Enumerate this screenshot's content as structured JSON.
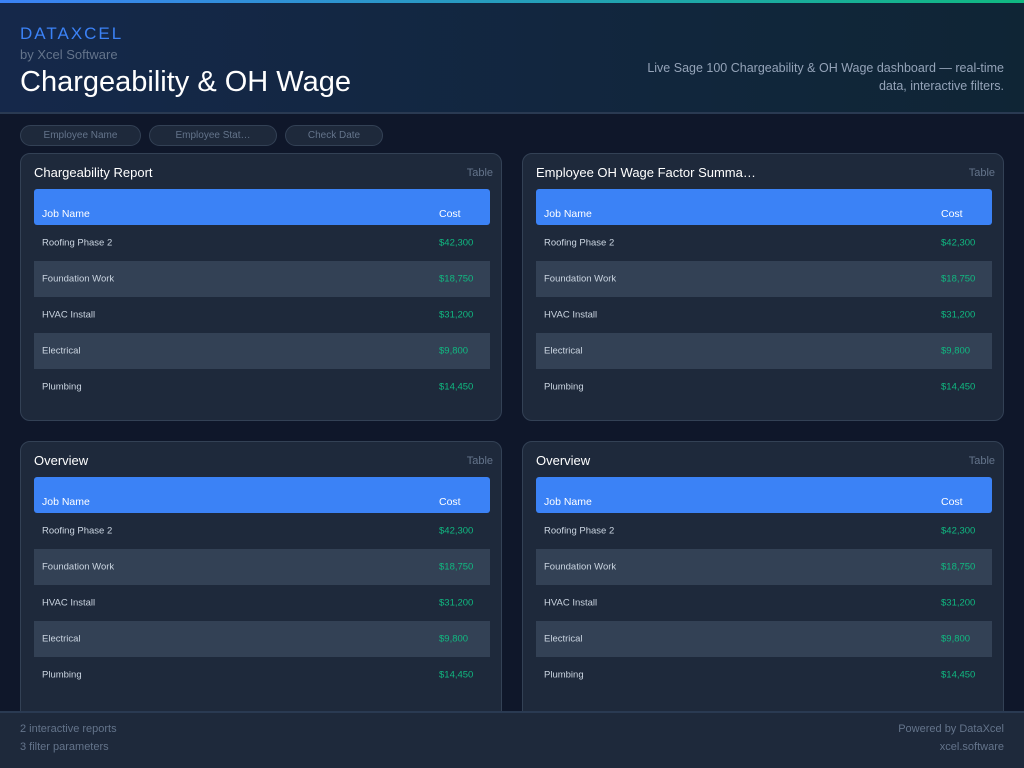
{
  "header": {
    "brand": "DATAXCEL",
    "byline": "by Xcel Software",
    "title": "Chargeability & OH Wage",
    "description": "Live Sage 100 Chargeability & OH Wage dashboard — real-time data, interactive filters."
  },
  "filters": [
    {
      "label": "Employee Name"
    },
    {
      "label": "Employee Stat…"
    },
    {
      "label": "Check Date"
    }
  ],
  "cards": [
    {
      "title": "Chargeability Report",
      "type": "Table",
      "columns": [
        "Job Name",
        "Cost"
      ],
      "rows": [
        [
          "Roofing Phase 2",
          "$42,300"
        ],
        [
          "Foundation Work",
          "$18,750"
        ],
        [
          "HVAC Install",
          "$31,200"
        ],
        [
          "Electrical",
          "$9,800"
        ],
        [
          "Plumbing",
          "$14,450"
        ]
      ]
    },
    {
      "title": "Employee OH Wage Factor Summa…",
      "type": "Table",
      "columns": [
        "Job Name",
        "Cost"
      ],
      "rows": [
        [
          "Roofing Phase 2",
          "$42,300"
        ],
        [
          "Foundation Work",
          "$18,750"
        ],
        [
          "HVAC Install",
          "$31,200"
        ],
        [
          "Electrical",
          "$9,800"
        ],
        [
          "Plumbing",
          "$14,450"
        ]
      ]
    },
    {
      "title": "Overview",
      "type": "Table",
      "columns": [
        "Job Name",
        "Cost"
      ],
      "rows": [
        [
          "Roofing Phase 2",
          "$42,300"
        ],
        [
          "Foundation Work",
          "$18,750"
        ],
        [
          "HVAC Install",
          "$31,200"
        ],
        [
          "Electrical",
          "$9,800"
        ],
        [
          "Plumbing",
          "$14,450"
        ]
      ]
    },
    {
      "title": "Overview",
      "type": "Table",
      "columns": [
        "Job Name",
        "Cost"
      ],
      "rows": [
        [
          "Roofing Phase 2",
          "$42,300"
        ],
        [
          "Foundation Work",
          "$18,750"
        ],
        [
          "HVAC Install",
          "$31,200"
        ],
        [
          "Electrical",
          "$9,800"
        ],
        [
          "Plumbing",
          "$14,450"
        ]
      ]
    }
  ],
  "footer": {
    "reports": "2 interactive reports",
    "params": "3 filter parameters",
    "powered": "Powered by DataXcel",
    "site": "xcel.software"
  },
  "colors": {
    "accent": "#3b82f6",
    "value": "#10b981",
    "background": "#0f172a"
  }
}
